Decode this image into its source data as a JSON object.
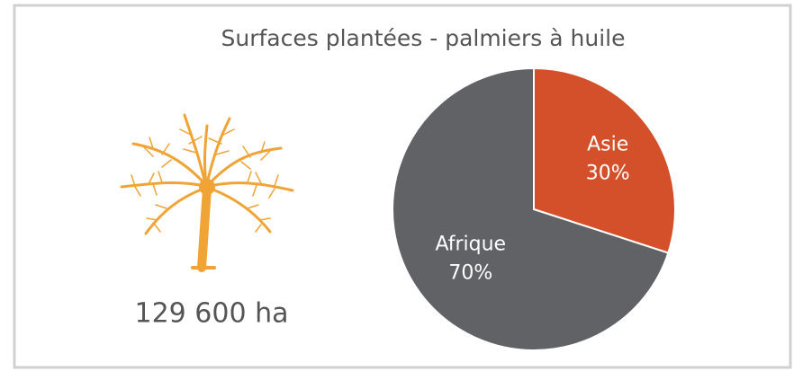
{
  "chart_data": {
    "type": "pie",
    "title": "Surfaces plantées - palmiers à huile",
    "annotation": "129 600 ha",
    "categories": [
      "Asie",
      "Afrique"
    ],
    "values": [
      30,
      70
    ],
    "value_labels": [
      "30%",
      "70%"
    ],
    "colors": [
      "#d4502a",
      "#616265"
    ]
  }
}
